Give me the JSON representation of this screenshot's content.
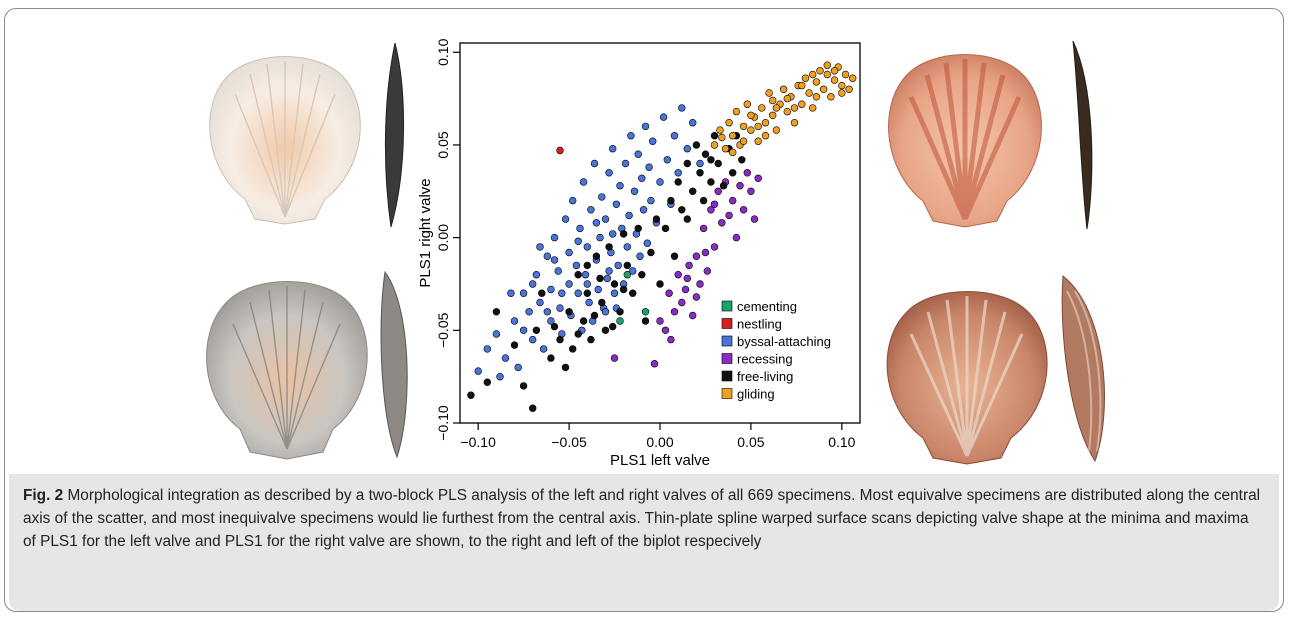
{
  "caption": {
    "label": "Fig. 2",
    "text": " Morphological integration as described by a two-block PLS analysis of the left and right valves of all 669 specimens. Most equivalve specimens are distributed along the central axis of the scatter, and most inequivalve specimens would lie furthest from the central axis. Thin-plate spline warped surface scans depicting valve shape at the minima and maxima of PLS1 for the left valve and PLS1 for the right valve are shown, to the right and left of the biplot respecively"
  },
  "chart_data": {
    "type": "scatter",
    "xlabel": "PLS1 left valve",
    "ylabel": "PLS1 right valve",
    "xlim": [
      -0.11,
      0.11
    ],
    "ylim": [
      -0.1,
      0.105
    ],
    "x_ticks": [
      -0.1,
      -0.05,
      0.0,
      0.05,
      0.1
    ],
    "x_tick_labels": [
      "−0.10",
      "−0.05",
      "0.00",
      "0.05",
      "0.10"
    ],
    "y_ticks": [
      -0.1,
      -0.05,
      0.0,
      0.05,
      0.1
    ],
    "y_tick_labels": [
      "−0.10",
      "−0.05",
      "0.00",
      "0.05",
      "0.10"
    ],
    "grid": false,
    "legend_position": "bottom-right",
    "series": [
      {
        "name": "cementing",
        "color": "#1aa36a",
        "points": [
          [
            -0.018,
            -0.02
          ],
          [
            -0.022,
            -0.045
          ],
          [
            -0.008,
            -0.04
          ]
        ]
      },
      {
        "name": "nestling",
        "color": "#d42020",
        "points": [
          [
            -0.055,
            0.047
          ]
        ]
      },
      {
        "name": "byssal-attaching",
        "color": "#4a74d9",
        "points": [
          [
            -0.1,
            -0.072
          ],
          [
            -0.095,
            -0.06
          ],
          [
            -0.09,
            -0.052
          ],
          [
            -0.085,
            -0.065
          ],
          [
            -0.08,
            -0.045
          ],
          [
            -0.078,
            -0.07
          ],
          [
            -0.075,
            -0.03
          ],
          [
            -0.072,
            -0.04
          ],
          [
            -0.07,
            -0.055
          ],
          [
            -0.068,
            -0.02
          ],
          [
            -0.066,
            -0.035
          ],
          [
            -0.064,
            -0.06
          ],
          [
            -0.062,
            -0.01
          ],
          [
            -0.06,
            -0.028
          ],
          [
            -0.06,
            -0.045
          ],
          [
            -0.058,
            0.0
          ],
          [
            -0.056,
            -0.018
          ],
          [
            -0.055,
            -0.038
          ],
          [
            -0.054,
            -0.052
          ],
          [
            -0.052,
            0.01
          ],
          [
            -0.05,
            -0.008
          ],
          [
            -0.05,
            -0.025
          ],
          [
            -0.049,
            -0.042
          ],
          [
            -0.048,
            0.02
          ],
          [
            -0.046,
            -0.015
          ],
          [
            -0.045,
            -0.03
          ],
          [
            -0.044,
            0.005
          ],
          [
            -0.043,
            -0.05
          ],
          [
            -0.042,
            0.03
          ],
          [
            -0.041,
            -0.02
          ],
          [
            -0.04,
            -0.005
          ],
          [
            -0.039,
            -0.035
          ],
          [
            -0.038,
            0.015
          ],
          [
            -0.037,
            -0.045
          ],
          [
            -0.036,
            0.04
          ],
          [
            -0.035,
            -0.012
          ],
          [
            -0.034,
            -0.028
          ],
          [
            -0.033,
            0.0
          ],
          [
            -0.032,
            0.022
          ],
          [
            -0.031,
            -0.038
          ],
          [
            -0.03,
            0.01
          ],
          [
            -0.029,
            -0.022
          ],
          [
            -0.028,
            0.035
          ],
          [
            -0.027,
            -0.008
          ],
          [
            -0.026,
            0.048
          ],
          [
            -0.025,
            -0.03
          ],
          [
            -0.024,
            0.018
          ],
          [
            -0.023,
            -0.015
          ],
          [
            -0.022,
            0.028
          ],
          [
            -0.021,
            0.005
          ],
          [
            -0.02,
            -0.025
          ],
          [
            -0.019,
            0.04
          ],
          [
            -0.018,
            -0.005
          ],
          [
            -0.017,
            0.012
          ],
          [
            -0.016,
            0.055
          ],
          [
            -0.015,
            -0.018
          ],
          [
            -0.014,
            0.025
          ],
          [
            -0.013,
            0.002
          ],
          [
            -0.012,
            0.045
          ],
          [
            -0.011,
            -0.01
          ],
          [
            -0.01,
            0.032
          ],
          [
            -0.009,
            0.015
          ],
          [
            -0.008,
            0.06
          ],
          [
            -0.007,
            -0.003
          ],
          [
            -0.006,
            0.038
          ],
          [
            -0.005,
            0.02
          ],
          [
            -0.004,
            0.052
          ],
          [
            -0.002,
            0.008
          ],
          [
            0.0,
            0.03
          ],
          [
            0.002,
            0.065
          ],
          [
            0.004,
            0.042
          ],
          [
            0.006,
            0.018
          ],
          [
            0.008,
            0.055
          ],
          [
            0.01,
            0.035
          ],
          [
            0.012,
            0.07
          ],
          [
            0.015,
            0.048
          ],
          [
            0.018,
            0.062
          ],
          [
            0.022,
            0.04
          ],
          [
            -0.045,
            -0.002
          ],
          [
            -0.04,
            -0.025
          ],
          [
            -0.035,
            0.008
          ],
          [
            -0.03,
            -0.04
          ],
          [
            -0.028,
            -0.018
          ],
          [
            -0.026,
            0.002
          ],
          [
            -0.024,
            -0.038
          ],
          [
            -0.054,
            -0.03
          ],
          [
            -0.058,
            -0.012
          ],
          [
            -0.062,
            -0.04
          ],
          [
            -0.066,
            -0.005
          ],
          [
            -0.07,
            -0.025
          ],
          [
            -0.075,
            -0.05
          ],
          [
            -0.082,
            -0.03
          ],
          [
            -0.088,
            -0.075
          ]
        ]
      },
      {
        "name": "recessing",
        "color": "#8a2bc7",
        "points": [
          [
            -0.025,
            -0.065
          ],
          [
            -0.003,
            -0.068
          ],
          [
            0.0,
            -0.045
          ],
          [
            0.003,
            -0.05
          ],
          [
            0.005,
            -0.03
          ],
          [
            0.008,
            -0.04
          ],
          [
            0.01,
            -0.02
          ],
          [
            0.012,
            -0.035
          ],
          [
            0.014,
            -0.028
          ],
          [
            0.016,
            -0.015
          ],
          [
            0.018,
            -0.042
          ],
          [
            0.02,
            -0.01
          ],
          [
            0.022,
            -0.025
          ],
          [
            0.024,
            0.005
          ],
          [
            0.026,
            -0.018
          ],
          [
            0.028,
            0.015
          ],
          [
            0.03,
            -0.005
          ],
          [
            0.032,
            0.025
          ],
          [
            0.034,
            0.008
          ],
          [
            0.036,
            0.03
          ],
          [
            0.038,
            0.012
          ],
          [
            0.04,
            0.02
          ],
          [
            0.042,
            0.0
          ],
          [
            0.044,
            0.028
          ],
          [
            0.046,
            0.015
          ],
          [
            0.048,
            0.035
          ],
          [
            0.05,
            0.025
          ],
          [
            0.052,
            0.01
          ],
          [
            0.054,
            0.032
          ],
          [
            0.015,
            -0.022
          ],
          [
            0.006,
            -0.055
          ],
          [
            0.02,
            -0.032
          ],
          [
            0.025,
            -0.008
          ],
          [
            0.03,
            0.018
          ]
        ]
      },
      {
        "name": "free-living",
        "color": "#111111",
        "points": [
          [
            -0.104,
            -0.085
          ],
          [
            -0.095,
            -0.078
          ],
          [
            -0.09,
            -0.04
          ],
          [
            -0.08,
            -0.058
          ],
          [
            -0.075,
            -0.08
          ],
          [
            -0.07,
            -0.092
          ],
          [
            -0.068,
            -0.05
          ],
          [
            -0.065,
            -0.03
          ],
          [
            -0.06,
            -0.065
          ],
          [
            -0.055,
            -0.055
          ],
          [
            -0.05,
            -0.04
          ],
          [
            -0.048,
            -0.06
          ],
          [
            -0.045,
            -0.02
          ],
          [
            -0.042,
            -0.045
          ],
          [
            -0.04,
            -0.03
          ],
          [
            -0.038,
            -0.055
          ],
          [
            -0.035,
            -0.01
          ],
          [
            -0.032,
            -0.035
          ],
          [
            -0.03,
            -0.05
          ],
          [
            -0.028,
            -0.005
          ],
          [
            -0.025,
            -0.025
          ],
          [
            -0.022,
            -0.04
          ],
          [
            -0.02,
            0.002
          ],
          [
            -0.018,
            -0.015
          ],
          [
            -0.015,
            -0.03
          ],
          [
            -0.012,
            0.005
          ],
          [
            -0.01,
            -0.02
          ],
          [
            -0.008,
            -0.045
          ],
          [
            -0.005,
            -0.008
          ],
          [
            -0.002,
            0.01
          ],
          [
            0.0,
            -0.025
          ],
          [
            0.003,
            0.005
          ],
          [
            0.006,
            0.02
          ],
          [
            0.008,
            -0.01
          ],
          [
            0.01,
            0.03
          ],
          [
            0.012,
            0.015
          ],
          [
            0.015,
            0.04
          ],
          [
            0.018,
            0.025
          ],
          [
            0.02,
            0.05
          ],
          [
            0.022,
            0.035
          ],
          [
            0.025,
            0.045
          ],
          [
            0.028,
            0.03
          ],
          [
            0.03,
            0.055
          ],
          [
            0.032,
            0.04
          ],
          [
            0.035,
            0.028
          ],
          [
            0.038,
            0.048
          ],
          [
            0.04,
            0.035
          ],
          [
            0.042,
            0.055
          ],
          [
            0.045,
            0.042
          ],
          [
            -0.058,
            -0.048
          ],
          [
            -0.052,
            -0.07
          ],
          [
            -0.045,
            -0.052
          ],
          [
            -0.04,
            -0.015
          ],
          [
            -0.036,
            -0.042
          ],
          [
            -0.033,
            -0.022
          ],
          [
            -0.026,
            -0.048
          ],
          [
            -0.02,
            -0.028
          ],
          [
            0.015,
            0.01
          ],
          [
            0.024,
            0.02
          ],
          [
            0.028,
            0.042
          ]
        ]
      },
      {
        "name": "gliding",
        "color": "#f0a020",
        "points": [
          [
            0.03,
            0.05
          ],
          [
            0.033,
            0.058
          ],
          [
            0.036,
            0.048
          ],
          [
            0.038,
            0.062
          ],
          [
            0.04,
            0.055
          ],
          [
            0.042,
            0.068
          ],
          [
            0.044,
            0.05
          ],
          [
            0.046,
            0.06
          ],
          [
            0.048,
            0.072
          ],
          [
            0.05,
            0.058
          ],
          [
            0.052,
            0.065
          ],
          [
            0.054,
            0.052
          ],
          [
            0.056,
            0.07
          ],
          [
            0.058,
            0.062
          ],
          [
            0.06,
            0.078
          ],
          [
            0.062,
            0.066
          ],
          [
            0.064,
            0.058
          ],
          [
            0.066,
            0.072
          ],
          [
            0.068,
            0.08
          ],
          [
            0.07,
            0.068
          ],
          [
            0.072,
            0.076
          ],
          [
            0.074,
            0.062
          ],
          [
            0.076,
            0.082
          ],
          [
            0.078,
            0.072
          ],
          [
            0.08,
            0.086
          ],
          [
            0.082,
            0.078
          ],
          [
            0.084,
            0.07
          ],
          [
            0.086,
            0.084
          ],
          [
            0.088,
            0.09
          ],
          [
            0.09,
            0.08
          ],
          [
            0.092,
            0.088
          ],
          [
            0.094,
            0.076
          ],
          [
            0.096,
            0.085
          ],
          [
            0.098,
            0.092
          ],
          [
            0.1,
            0.082
          ],
          [
            0.102,
            0.088
          ],
          [
            0.104,
            0.08
          ],
          [
            0.106,
            0.086
          ],
          [
            0.092,
            0.093
          ],
          [
            0.086,
            0.076
          ],
          [
            0.078,
            0.082
          ],
          [
            0.07,
            0.075
          ],
          [
            0.064,
            0.07
          ],
          [
            0.058,
            0.055
          ],
          [
            0.05,
            0.066
          ],
          [
            0.046,
            0.052
          ],
          [
            0.04,
            0.046
          ],
          [
            0.034,
            0.054
          ],
          [
            0.1,
            0.078
          ],
          [
            0.096,
            0.09
          ],
          [
            0.084,
            0.088
          ],
          [
            0.074,
            0.07
          ],
          [
            0.062,
            0.074
          ],
          [
            0.054,
            0.06
          ]
        ]
      }
    ]
  }
}
